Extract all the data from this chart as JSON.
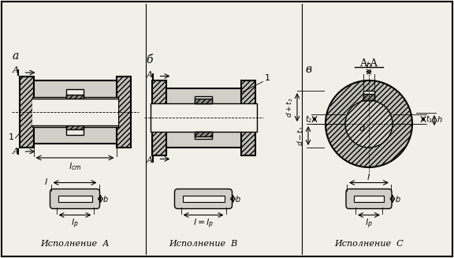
{
  "title": "",
  "background_color": "#f0f0e8",
  "border_color": "#000000",
  "hatch_color": "#000000",
  "labels": {
    "a": "а",
    "b_label": "б",
    "v_label": "в",
    "exec_a": "Исполнение  А",
    "exec_b": "Исполнение  В",
    "exec_c": "Исполнение  С",
    "l_cm": "$l_{cm}$",
    "l_p_a": "$l_p$",
    "l_p_b": "$l=l_p$",
    "l_b": "$l$",
    "l_p_c": "$l_p$",
    "b_dim": "$b$",
    "b_dim2": "$b$",
    "b_dim3": "$b$",
    "AA": "А-А",
    "d_label": "$d$",
    "t1_label": "$t_1$",
    "t2_label": "$t_2$",
    "h_label": "$h$",
    "b_top": "$b$",
    "d_t1": "$d-t_1$",
    "d_t2": "$d+t_2$"
  },
  "fig_width": 5.76,
  "fig_height": 3.27,
  "dpi": 100
}
